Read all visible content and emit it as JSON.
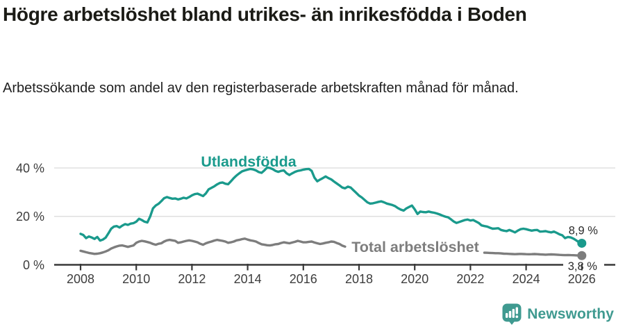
{
  "chart_data": {
    "type": "line",
    "title": "Högre arbetslöshet bland utrikes- än inrikesfödda i Boden",
    "subtitle": "Arbetssökande som andel av den registerbaserade arbetskraften månad för månad.",
    "x_unit": "year, monthly observations",
    "xlim": [
      2007.1,
      2027.2
    ],
    "ylim": [
      0,
      45
    ],
    "grid": "horizontal gridlines at 20 and 40 only",
    "legend_position": "inline labels on lines",
    "y_ticks": [
      {
        "value": 0,
        "label": "0 %"
      },
      {
        "value": 20,
        "label": "20 %"
      },
      {
        "value": 40,
        "label": "40 %"
      }
    ],
    "x_ticks": [
      {
        "value": 2008,
        "label": "2008"
      },
      {
        "value": 2010,
        "label": "2010"
      },
      {
        "value": 2012,
        "label": "2012"
      },
      {
        "value": 2014,
        "label": "2014"
      },
      {
        "value": 2016,
        "label": "2016"
      },
      {
        "value": 2018,
        "label": "2018"
      },
      {
        "value": 2020,
        "label": "2020"
      },
      {
        "value": 2022,
        "label": "2022"
      },
      {
        "value": 2024,
        "label": "2024"
      },
      {
        "value": 2026,
        "label": "2026"
      }
    ],
    "style": {
      "accent_teal": "#1a9a8c",
      "series_gray": "#7d7d7d",
      "axis_color": "#383838",
      "grid_color": "#d9d9d9",
      "text_color": "#3d3d3d"
    },
    "series": [
      {
        "name": "Utlandsfödda",
        "color": "#1a9a8c",
        "end_label": "8,9 %",
        "end_value": 8.9,
        "x_start": 2008.0,
        "x_step": 0.1,
        "values": [
          12.8,
          12.3,
          11.0,
          11.7,
          11.3,
          10.7,
          11.5,
          10.0,
          10.4,
          11.2,
          13.0,
          14.9,
          15.8,
          16.0,
          15.4,
          16.2,
          16.8,
          16.5,
          17.0,
          17.2,
          17.8,
          19.0,
          18.5,
          17.8,
          17.5,
          20.0,
          23.3,
          24.5,
          25.2,
          26.3,
          27.5,
          28.0,
          27.6,
          27.3,
          27.4,
          27.0,
          27.3,
          27.7,
          27.4,
          28.0,
          28.7,
          29.2,
          29.4,
          28.9,
          28.4,
          29.5,
          31.2,
          31.8,
          32.4,
          33.2,
          33.8,
          34.0,
          33.5,
          33.3,
          34.5,
          35.8,
          36.9,
          37.8,
          38.6,
          39.0,
          39.3,
          39.6,
          39.4,
          39.0,
          38.3,
          38.0,
          39.0,
          40.2,
          40.0,
          39.5,
          38.8,
          38.4,
          38.8,
          39.0,
          37.8,
          37.1,
          37.8,
          38.4,
          38.8,
          39.0,
          39.3,
          39.5,
          39.6,
          38.8,
          36.0,
          34.5,
          35.2,
          35.8,
          36.5,
          35.8,
          35.3,
          34.4,
          33.6,
          32.8,
          31.9,
          31.6,
          32.3,
          31.9,
          30.8,
          29.7,
          28.6,
          27.8,
          26.8,
          25.8,
          25.3,
          25.4,
          25.7,
          26.0,
          26.2,
          25.8,
          25.3,
          25.0,
          24.7,
          24.2,
          23.4,
          22.8,
          22.4,
          23.3,
          23.9,
          24.5,
          22.9,
          21.0,
          22.0,
          21.8,
          21.7,
          22.0,
          21.7,
          21.5,
          21.2,
          20.8,
          20.3,
          19.9,
          19.6,
          18.8,
          17.9,
          17.3,
          17.7,
          18.1,
          18.5,
          18.7,
          18.3,
          18.5,
          17.9,
          17.3,
          16.3,
          16.0,
          15.8,
          15.3,
          14.9,
          15.0,
          15.1,
          14.4,
          14.1,
          13.9,
          14.4,
          13.9,
          13.4,
          14.1,
          14.7,
          14.9,
          14.7,
          14.4,
          14.1,
          14.3,
          14.4,
          13.7,
          13.8,
          13.9,
          13.6,
          13.4,
          13.7,
          13.2,
          12.6,
          12.2,
          11.0,
          11.5,
          11.3,
          10.8,
          10.1,
          9.3,
          8.9
        ]
      },
      {
        "name": "Total arbetslöshet",
        "color": "#7d7d7d",
        "end_label": "3,8 %",
        "end_value": 3.8,
        "note": "line interrupted between 2017.5 and 2022.5 where its label is printed",
        "segments": [
          {
            "x_start": 2008.0,
            "x_step": 0.1,
            "values": [
              5.8,
              5.5,
              5.2,
              4.9,
              4.7,
              4.5,
              4.6,
              4.8,
              5.1,
              5.5,
              6.0,
              6.7,
              7.2,
              7.6,
              7.9,
              8.0,
              7.7,
              7.4,
              7.7,
              8.0,
              9.1,
              9.6,
              9.9,
              9.7,
              9.4,
              9.1,
              8.6,
              8.3,
              8.7,
              8.9,
              9.6,
              10.1,
              10.3,
              10.1,
              9.9,
              9.1,
              9.3,
              9.6,
              9.9,
              10.1,
              9.9,
              9.6,
              9.3,
              8.7,
              8.3,
              8.9,
              9.3,
              9.6,
              10.0,
              10.3,
              10.1,
              9.9,
              9.6,
              9.1,
              9.3,
              9.6,
              10.1,
              10.3,
              10.6,
              10.8,
              10.4,
              10.1,
              9.9,
              9.6,
              9.0,
              8.5,
              8.3,
              8.1,
              8.0,
              8.2,
              8.5,
              8.6,
              9.0,
              9.3,
              9.1,
              8.9,
              9.2,
              9.5,
              9.9,
              9.6,
              9.3,
              9.3,
              9.5,
              9.6,
              9.2,
              8.9,
              8.6,
              8.8,
              9.1,
              9.3,
              9.6,
              9.5,
              9.0,
              8.6,
              7.9,
              7.5
            ]
          },
          {
            "x_start": 2022.5,
            "x_step": 0.1,
            "values": [
              5.0,
              4.95,
              4.9,
              4.85,
              4.8,
              4.8,
              4.7,
              4.6,
              4.55,
              4.5,
              4.45,
              4.4,
              4.45,
              4.5,
              4.45,
              4.4,
              4.35,
              4.4,
              4.45,
              4.4,
              4.3,
              4.25,
              4.2,
              4.25,
              4.3,
              4.25,
              4.2,
              4.1,
              4.05,
              4.0,
              4.05,
              4.0,
              3.95,
              3.9,
              3.85,
              3.8
            ]
          }
        ]
      }
    ]
  },
  "footer": {
    "brand": "Newsworthy",
    "logo_icon": "speech-bubble-with-bar-chart-and-exclamation",
    "logo_color": "#3f9a90"
  }
}
